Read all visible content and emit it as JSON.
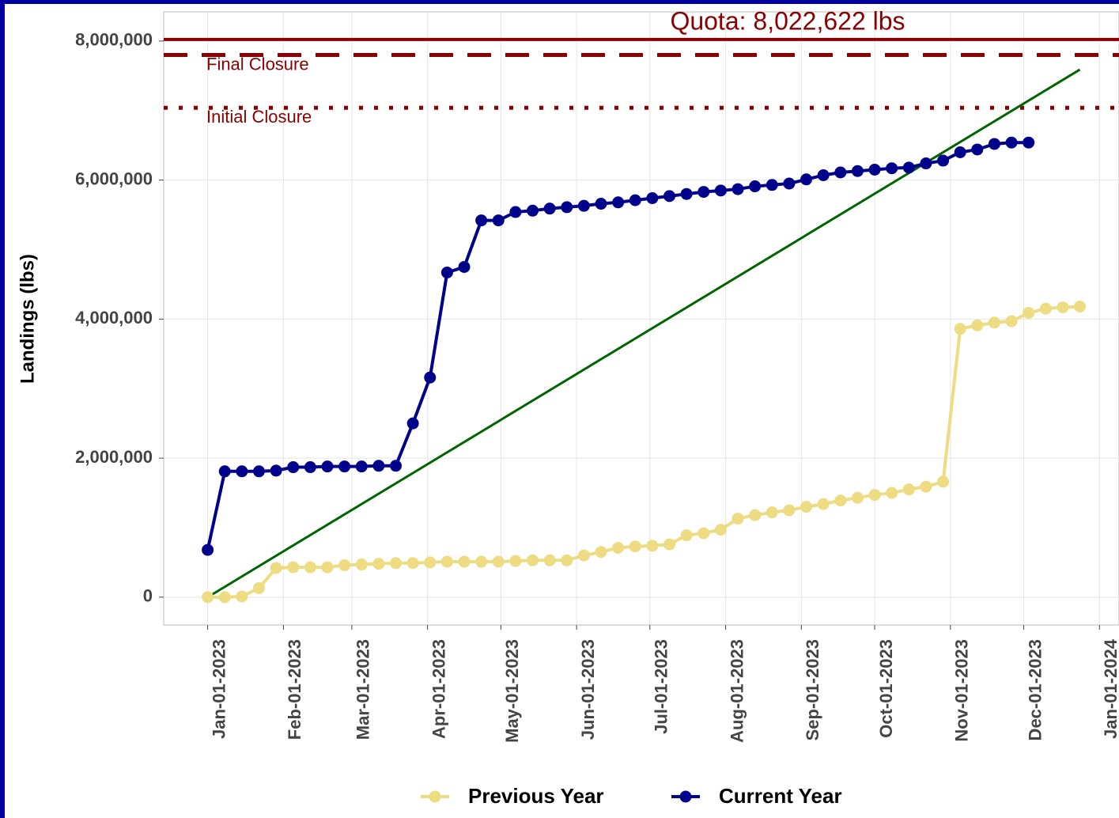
{
  "chart_data": {
    "type": "line",
    "y_label": "Landings (lbs)",
    "xlim": [
      "2022-12-14",
      "2024-01-09"
    ],
    "ylim": [
      -400000,
      8420000
    ],
    "xticks": [
      {
        "value": "2023-01-01",
        "label": "Jan-01-2023"
      },
      {
        "value": "2023-02-01",
        "label": "Feb-01-2023"
      },
      {
        "value": "2023-03-01",
        "label": "Mar-01-2023"
      },
      {
        "value": "2023-04-01",
        "label": "Apr-01-2023"
      },
      {
        "value": "2023-05-01",
        "label": "May-01-2023"
      },
      {
        "value": "2023-06-01",
        "label": "Jun-01-2023"
      },
      {
        "value": "2023-07-01",
        "label": "Jul-01-2023"
      },
      {
        "value": "2023-08-01",
        "label": "Aug-01-2023"
      },
      {
        "value": "2023-09-01",
        "label": "Sep-01-2023"
      },
      {
        "value": "2023-10-01",
        "label": "Oct-01-2023"
      },
      {
        "value": "2023-11-01",
        "label": "Nov-01-2023"
      },
      {
        "value": "2023-12-01",
        "label": "Dec-01-2023"
      },
      {
        "value": "2024-01-01",
        "label": "Jan-01-2024"
      }
    ],
    "yticks": [
      0,
      {
        "value": 2000000,
        "label": "2,000,000"
      },
      {
        "value": 4000000,
        "label": "4,000,000"
      },
      {
        "value": 6000000,
        "label": "6,000,000"
      },
      {
        "value": 8000000,
        "label": "8,000,000"
      }
    ],
    "grid": true,
    "legend": "bottom",
    "hlines": [
      {
        "value": 8022622,
        "label": "Quota: 8,022,622 lbs",
        "style": "solid",
        "color": "#8b0000"
      },
      {
        "value": 7800000,
        "label": "Final Closure",
        "style": "dashed",
        "color": "#8b0000"
      },
      {
        "value": 7040000,
        "label": "Initial Closure",
        "style": "dotted",
        "color": "#8b0000"
      }
    ],
    "trend": {
      "color": "#006400",
      "x": [
        "2023-01-01",
        "2023-12-24"
      ],
      "values": [
        0,
        7590000
      ]
    },
    "series": [
      {
        "name": "Previous Year",
        "color": "#eedc82",
        "x": [
          "2023-01-01",
          "2023-01-08",
          "2023-01-15",
          "2023-01-22",
          "2023-01-29",
          "2023-02-05",
          "2023-02-12",
          "2023-02-19",
          "2023-02-26",
          "2023-03-05",
          "2023-03-12",
          "2023-03-19",
          "2023-03-26",
          "2023-04-02",
          "2023-04-09",
          "2023-04-16",
          "2023-04-23",
          "2023-04-30",
          "2023-05-07",
          "2023-05-14",
          "2023-05-21",
          "2023-05-28",
          "2023-06-04",
          "2023-06-11",
          "2023-06-18",
          "2023-06-25",
          "2023-07-02",
          "2023-07-09",
          "2023-07-16",
          "2023-07-23",
          "2023-07-30",
          "2023-08-06",
          "2023-08-13",
          "2023-08-20",
          "2023-08-27",
          "2023-09-03",
          "2023-09-10",
          "2023-09-17",
          "2023-09-24",
          "2023-10-01",
          "2023-10-08",
          "2023-10-15",
          "2023-10-22",
          "2023-10-29",
          "2023-11-05",
          "2023-11-12",
          "2023-11-19",
          "2023-11-26",
          "2023-12-03",
          "2023-12-10",
          "2023-12-17",
          "2023-12-24"
        ],
        "values": [
          0,
          0,
          10000,
          130000,
          420000,
          430000,
          430000,
          430000,
          460000,
          470000,
          480000,
          490000,
          490000,
          500000,
          510000,
          510000,
          510000,
          510000,
          520000,
          530000,
          530000,
          530000,
          600000,
          650000,
          710000,
          730000,
          740000,
          760000,
          890000,
          920000,
          970000,
          1130000,
          1180000,
          1220000,
          1250000,
          1300000,
          1340000,
          1390000,
          1430000,
          1470000,
          1500000,
          1550000,
          1590000,
          1660000,
          3860000,
          3910000,
          3950000,
          3970000,
          4090000,
          4150000,
          4170000,
          4180000
        ]
      },
      {
        "name": "Current Year",
        "color": "#00008b",
        "x": [
          "2023-01-01",
          "2023-01-08",
          "2023-01-15",
          "2023-01-22",
          "2023-01-29",
          "2023-02-05",
          "2023-02-12",
          "2023-02-19",
          "2023-02-26",
          "2023-03-05",
          "2023-03-12",
          "2023-03-19",
          "2023-03-26",
          "2023-04-02",
          "2023-04-09",
          "2023-04-16",
          "2023-04-23",
          "2023-04-30",
          "2023-05-07",
          "2023-05-14",
          "2023-05-21",
          "2023-05-28",
          "2023-06-04",
          "2023-06-11",
          "2023-06-18",
          "2023-06-25",
          "2023-07-02",
          "2023-07-09",
          "2023-07-16",
          "2023-07-23",
          "2023-07-30",
          "2023-08-06",
          "2023-08-13",
          "2023-08-20",
          "2023-08-27",
          "2023-09-03",
          "2023-09-10",
          "2023-09-17",
          "2023-09-24",
          "2023-10-01",
          "2023-10-08",
          "2023-10-15",
          "2023-10-22",
          "2023-10-29",
          "2023-11-05",
          "2023-11-12",
          "2023-11-19",
          "2023-11-26",
          "2023-12-03"
        ],
        "values": [
          680000,
          1810000,
          1810000,
          1810000,
          1820000,
          1870000,
          1870000,
          1880000,
          1880000,
          1880000,
          1890000,
          1890000,
          2500000,
          3160000,
          4670000,
          4750000,
          5420000,
          5420000,
          5540000,
          5560000,
          5590000,
          5610000,
          5630000,
          5660000,
          5680000,
          5710000,
          5740000,
          5770000,
          5800000,
          5830000,
          5850000,
          5870000,
          5910000,
          5930000,
          5950000,
          6010000,
          6070000,
          6110000,
          6130000,
          6150000,
          6170000,
          6180000,
          6240000,
          6280000,
          6400000,
          6440000,
          6520000,
          6540000,
          6540000
        ]
      }
    ]
  }
}
